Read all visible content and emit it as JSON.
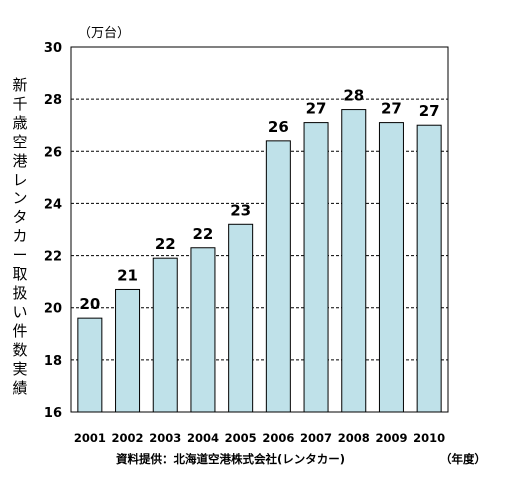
{
  "chart_data": {
    "type": "bar",
    "ylabel": "新千歳空港レンタカー取扱い件数実績",
    "unit_label": "（万台）",
    "xunit_label": "（年度）",
    "source": "資料提供：北海道空港株式会社(レンタカー)",
    "categories": [
      "2001",
      "2002",
      "2003",
      "2004",
      "2005",
      "2006",
      "2007",
      "2008",
      "2009",
      "2010"
    ],
    "values": [
      19.6,
      20.7,
      21.9,
      22.3,
      23.2,
      26.4,
      27.1,
      27.6,
      27.1,
      27.0
    ],
    "data_labels": [
      "20",
      "21",
      "22",
      "22",
      "23",
      "26",
      "27",
      "28",
      "27",
      "27"
    ],
    "yticks": [
      "16",
      "18",
      "20",
      "22",
      "24",
      "26",
      "28",
      "30"
    ],
    "ylim": [
      16,
      30
    ],
    "grid": "horizontal-dashed",
    "bar_color": "#bfe1e9",
    "bar_border": "#000000"
  }
}
